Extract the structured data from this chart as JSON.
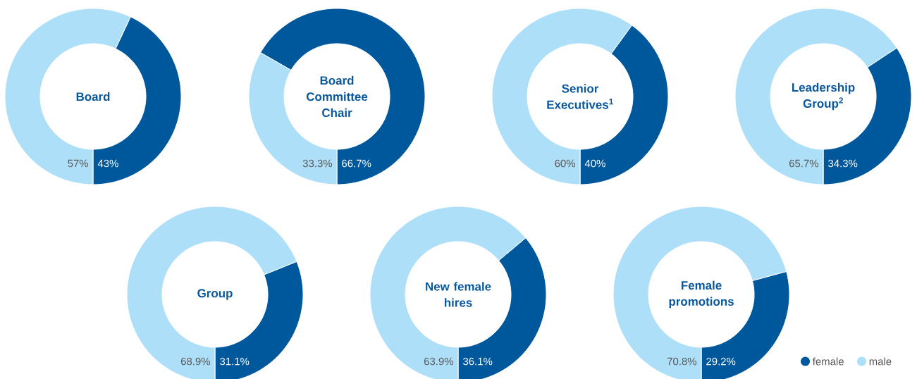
{
  "chart_data": [
    {
      "type": "donut",
      "title": "Board",
      "categories": [
        null,
        null
      ],
      "values": [
        43,
        57
      ],
      "value_labels": [
        "43%",
        "57%"
      ],
      "colors": [
        "#00589c",
        "#addff8"
      ],
      "legend": false
    },
    {
      "type": "donut",
      "title": "Board Committee Chair",
      "categories": [
        null,
        null
      ],
      "values": [
        66.7,
        33.3
      ],
      "value_labels": [
        "66.7%",
        "33.3%"
      ],
      "colors": [
        "#00589c",
        "#addff8"
      ],
      "legend": false
    },
    {
      "type": "donut",
      "title": "Senior Executives$^{1}$",
      "categories": [
        null,
        null
      ],
      "values": [
        40,
        60
      ],
      "value_labels": [
        "40%",
        "60%"
      ],
      "colors": [
        "#00589c",
        "#addff8"
      ],
      "legend": false
    },
    {
      "type": "donut",
      "title": "Leadership Group$^{2}$",
      "categories": [
        null,
        null
      ],
      "values": [
        34.3,
        65.7
      ],
      "value_labels": [
        "34.3%",
        "65.7%"
      ],
      "colors": [
        "#00589c",
        "#addff8"
      ],
      "legend": false
    },
    {
      "type": "donut",
      "title": "Group",
      "categories": [
        null,
        null
      ],
      "values": [
        31.1,
        68.9
      ],
      "value_labels": [
        "31.1%",
        "68.9%"
      ],
      "colors": [
        "#00589c",
        "#addff8"
      ],
      "legend": false
    },
    {
      "type": "donut",
      "title": "New female hires",
      "categories": [
        null,
        null
      ],
      "values": [
        36.1,
        63.9
      ],
      "value_labels": [
        "36.1%",
        "63.9%"
      ],
      "colors": [
        "#00589c",
        "#addff8"
      ],
      "legend": false
    },
    {
      "type": "donut",
      "title": "Female promotions",
      "categories": [
        "female",
        "male"
      ],
      "values": [
        29.2,
        70.8
      ],
      "value_labels": [
        "29.2%",
        "70.8%"
      ],
      "colors": [
        "#00589c",
        "#addff8"
      ],
      "legend": "bottom right"
    }
  ]
}
